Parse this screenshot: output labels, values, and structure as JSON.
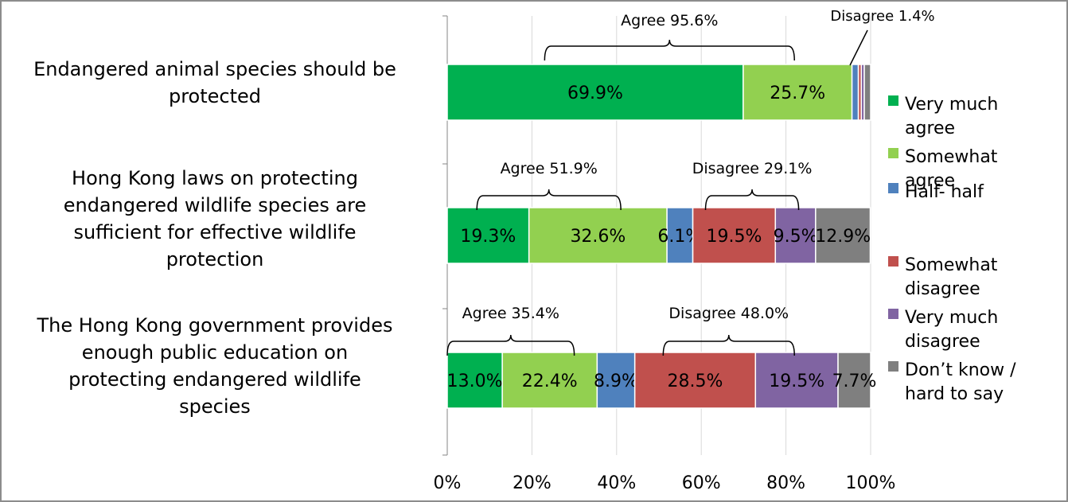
{
  "chart_data": {
    "type": "bar",
    "orientation": "horizontal",
    "stacked": true,
    "percent_axis": true,
    "categories": [
      "Endangered animal species should be protected",
      "Hong Kong laws on protecting endangered wildlife species are sufficient for effective wildlife protection",
      "The Hong Kong government provides enough public education on protecting endangered wildlife species"
    ],
    "category_lines": [
      [
        "Endangered animal species should be",
        "protected"
      ],
      [
        "Hong Kong laws on protecting",
        "endangered wildlife species are",
        "sufficient for effective wildlife",
        "protection"
      ],
      [
        "The Hong Kong government provides",
        "enough public education on",
        "protecting endangered wildlife",
        "species"
      ]
    ],
    "series": [
      {
        "name": "Very much agree",
        "legend_lines": [
          "Very much",
          "agree"
        ],
        "color": "#00b050",
        "values": [
          69.9,
          19.3,
          13.0
        ],
        "labels": [
          "69.9%",
          "19.3%",
          "13.0%"
        ]
      },
      {
        "name": "Somewhat agree",
        "legend_lines": [
          "Somewhat",
          "agree"
        ],
        "color": "#92d050",
        "values": [
          25.7,
          32.6,
          22.4
        ],
        "labels": [
          "25.7%",
          "32.6%",
          "22.4%"
        ]
      },
      {
        "name": "Half- half",
        "legend_lines": [
          "Half- half"
        ],
        "color": "#4f81bd",
        "values": [
          1.5,
          6.1,
          8.9
        ],
        "labels": [
          "",
          "6.1%",
          "8.9%"
        ]
      },
      {
        "name": "Somewhat disagree",
        "legend_lines": [
          "Somewhat",
          "disagree"
        ],
        "color": "#c0504d",
        "values": [
          0.7,
          19.5,
          28.5
        ],
        "labels": [
          "",
          "19.5%",
          "28.5%"
        ]
      },
      {
        "name": "Very much disagree",
        "legend_lines": [
          "Very much",
          "disagree"
        ],
        "color": "#8064a2",
        "values": [
          0.7,
          9.5,
          19.5
        ],
        "labels": [
          "",
          "9.5%",
          "19.5%"
        ]
      },
      {
        "name": "Don’t know / hard to say",
        "legend_lines": [
          "Don’t know /",
          "hard to say"
        ],
        "color": "#7f7f7f",
        "values": [
          1.5,
          12.9,
          7.7
        ],
        "labels": [
          "",
          "12.9%",
          "7.7%"
        ]
      }
    ],
    "x_ticks": [
      0,
      20,
      40,
      60,
      80,
      100
    ],
    "x_tick_labels": [
      "0%",
      "20%",
      "40%",
      "60%",
      "80%",
      "100%"
    ],
    "xlim": [
      0,
      100
    ],
    "grid": true,
    "legend_position": "right",
    "annotations": [
      {
        "text": "Agree 95.6%",
        "row": 0,
        "from": 23,
        "to": 82,
        "kind": "brace"
      },
      {
        "text": "Disagree 1.4%",
        "row": 0,
        "at": 97,
        "kind": "callout"
      },
      {
        "text": "Agree 51.9%",
        "row": 1,
        "from": 7,
        "to": 41,
        "kind": "brace"
      },
      {
        "text": "Disagree 29.1%",
        "row": 1,
        "from": 61,
        "to": 83,
        "kind": "brace"
      },
      {
        "text": "Agree 35.4%",
        "row": 2,
        "from": 0,
        "to": 30,
        "kind": "brace"
      },
      {
        "text": "Disagree 48.0%",
        "row": 2,
        "from": 51,
        "to": 82,
        "kind": "brace"
      }
    ]
  }
}
